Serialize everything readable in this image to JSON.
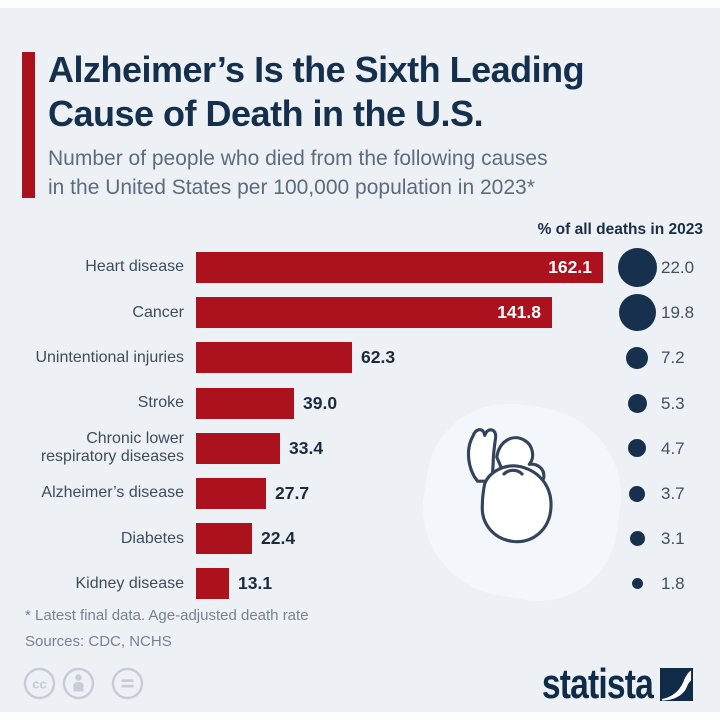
{
  "header": {
    "title_line1": "Alzheimer’s Is the Sixth Leading",
    "title_line2": "Cause of Death in the U.S.",
    "subtitle_line1": "Number of people who died from the following causes",
    "subtitle_line2": "in the United States per 100,000 population in 2023*"
  },
  "chart": {
    "column_header": "% of all deaths in 2023"
  },
  "chart_data": {
    "type": "bar",
    "orientation": "horizontal",
    "title": "Alzheimer’s Is the Sixth Leading Cause of Death in the U.S.",
    "subtitle": "Number of people who died from the following causes in the United States per 100,000 population in 2023*",
    "categories": [
      "Heart disease",
      "Cancer",
      "Unintentional injuries",
      "Stroke",
      "Chronic lower respiratory diseases",
      "Alzheimer’s disease",
      "Diabetes",
      "Kidney disease"
    ],
    "series": [
      {
        "name": "Deaths per 100,000 population",
        "values": [
          162.1,
          141.8,
          62.3,
          39.0,
          33.4,
          27.7,
          22.4,
          13.1
        ]
      },
      {
        "name": "% of all deaths in 2023",
        "values": [
          22.0,
          19.8,
          7.2,
          5.3,
          4.7,
          3.7,
          3.1,
          1.8
        ]
      }
    ],
    "xlim": [
      0,
      170
    ],
    "grid": false,
    "value_labels": true,
    "label_inside_min": 100,
    "bar_color": "#ab121e",
    "bubble_color": "#16304d",
    "bubble_legend_position": "right"
  },
  "illustration": "anatomical-heart",
  "footer": {
    "footnote": "* Latest final data. Age-adjusted death rate",
    "sources": "Sources: CDC, NCHS",
    "license_icons": [
      "cc",
      "attribution-person",
      "nd-equals"
    ],
    "brand": "statista"
  },
  "colors": {
    "background": "#edf1f6",
    "accent_red": "#ab121e",
    "title_navy": "#15304d",
    "subtitle_gray": "#5c6c7c",
    "bar_red": "#ab121e",
    "bubble_navy": "#16304d",
    "footnote_gray": "#76838f",
    "license_gray": "#c6cdd7",
    "brand_navy": "#102b47"
  }
}
